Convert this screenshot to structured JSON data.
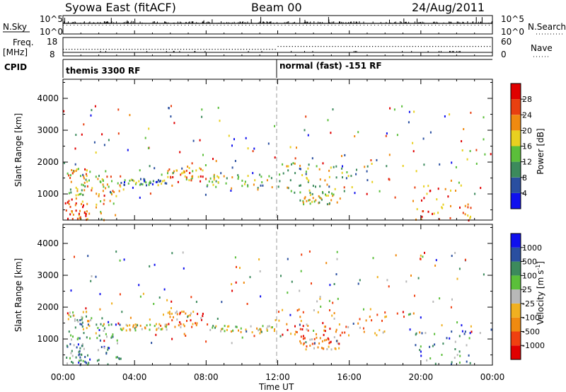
{
  "header": {
    "station": "Syowa East (fitACF)",
    "beam": "Beam 00",
    "date": "24/Aug/2011"
  },
  "top_panels": {
    "nsky_label": "N.Sky",
    "nsky_ticks": [
      "10^5",
      "10^0"
    ],
    "nsearch_label": "N.Search",
    "nsearch_ticks": [
      "10^5",
      "10^0"
    ],
    "freq_label_1": "Freq.",
    "freq_label_2": "[MHz]",
    "freq_ticks": [
      "18",
      "8"
    ],
    "nave_label": "Nave",
    "nave_ticks": [
      "60",
      "0"
    ],
    "cpid_label": "CPID",
    "cpid_segments": [
      {
        "start_hour": 0,
        "label": "themis 3300 RF"
      },
      {
        "start_hour": 12,
        "label": "normal (fast) -151 RF"
      }
    ]
  },
  "colors": {
    "power": [
      "#1010ee",
      "#2a4fa0",
      "#3c8a5c",
      "#5bbf3a",
      "#e8d020",
      "#f08a10",
      "#e84010",
      "#e00000"
    ],
    "velocity": [
      "#e00000",
      "#f04010",
      "#f08a10",
      "#f0b020",
      "#b8b8b8",
      "#5bbf3a",
      "#3c8a5c",
      "#2a4fa0",
      "#1010ee"
    ]
  },
  "chart_data": [
    {
      "type": "heatmap",
      "quantity": "power",
      "ylabel": "Slant Range [km]",
      "xlabel": "Time UT",
      "x_ticks": [
        "00:00",
        "04:00",
        "08:00",
        "12:00",
        "16:00",
        "20:00",
        "00:00"
      ],
      "xlim_hours": [
        0,
        24
      ],
      "y_ticks": [
        "1000",
        "2000",
        "3000",
        "4000"
      ],
      "ylim_km": [
        180,
        4600
      ],
      "colorbar": {
        "label": "Power [dB]",
        "range": [
          0,
          32
        ],
        "tick_labels": [
          "4",
          "8",
          "12",
          "16",
          "20",
          "24",
          "28"
        ]
      },
      "echo_regions": [
        {
          "t": [
            0.1,
            1.5
          ],
          "r": [
            200,
            900
          ],
          "level": 0.85
        },
        {
          "t": [
            0.2,
            1.6
          ],
          "r": [
            1000,
            1900
          ],
          "level": 0.55
        },
        {
          "t": [
            1.8,
            3.2
          ],
          "r": [
            200,
            1600
          ],
          "level": 0.6
        },
        {
          "t": [
            3.2,
            5.8
          ],
          "r": [
            1300,
            1500
          ],
          "level": 0.35
        },
        {
          "t": [
            5.8,
            8.0
          ],
          "r": [
            1400,
            1900
          ],
          "level": 0.7
        },
        {
          "t": [
            8.0,
            11.8
          ],
          "r": [
            1200,
            1700
          ],
          "level": 0.45
        },
        {
          "t": [
            12.0,
            18.0
          ],
          "r": [
            1100,
            2000
          ],
          "level": 0.45
        },
        {
          "t": [
            13.2,
            15.5
          ],
          "r": [
            700,
            1100
          ],
          "level": 0.5
        },
        {
          "t": [
            19.5,
            22.8
          ],
          "r": [
            200,
            1300
          ],
          "level": 0.75
        }
      ]
    },
    {
      "type": "heatmap",
      "quantity": "velocity",
      "ylabel": "Slant Range [km]",
      "xlabel": "Time UT",
      "x_ticks": [
        "00:00",
        "04:00",
        "08:00",
        "12:00",
        "16:00",
        "20:00",
        "00:00"
      ],
      "xlim_hours": [
        0,
        24
      ],
      "y_ticks": [
        "1000",
        "2000",
        "3000",
        "4000"
      ],
      "ylim_km": [
        180,
        4600
      ],
      "colorbar": {
        "label": "Velocity [m s",
        "label_sup": "-1",
        "label_end": "]",
        "tick_labels": [
          "1000",
          "500",
          "100",
          "25",
          "-25",
          "-100",
          "-500",
          "-1000"
        ]
      },
      "echo_regions": [
        {
          "t": [
            0.1,
            1.5
          ],
          "r": [
            200,
            900
          ],
          "level": 0.7
        },
        {
          "t": [
            0.2,
            1.6
          ],
          "r": [
            1000,
            1900
          ],
          "level": 0.6
        },
        {
          "t": [
            1.8,
            3.2
          ],
          "r": [
            200,
            1600
          ],
          "level": 0.7
        },
        {
          "t": [
            3.2,
            5.8
          ],
          "r": [
            1300,
            1500
          ],
          "level": 0.45
        },
        {
          "t": [
            5.8,
            8.0
          ],
          "r": [
            1400,
            1900
          ],
          "level": 0.25
        },
        {
          "t": [
            8.0,
            11.8
          ],
          "r": [
            1250,
            1450
          ],
          "level": 0.5
        },
        {
          "t": [
            12.0,
            18.0
          ],
          "r": [
            1100,
            2000
          ],
          "level": 0.3
        },
        {
          "t": [
            13.2,
            15.5
          ],
          "r": [
            700,
            1100
          ],
          "level": 0.3
        },
        {
          "t": [
            19.5,
            22.8
          ],
          "r": [
            200,
            1300
          ],
          "level": 0.7
        }
      ]
    }
  ]
}
